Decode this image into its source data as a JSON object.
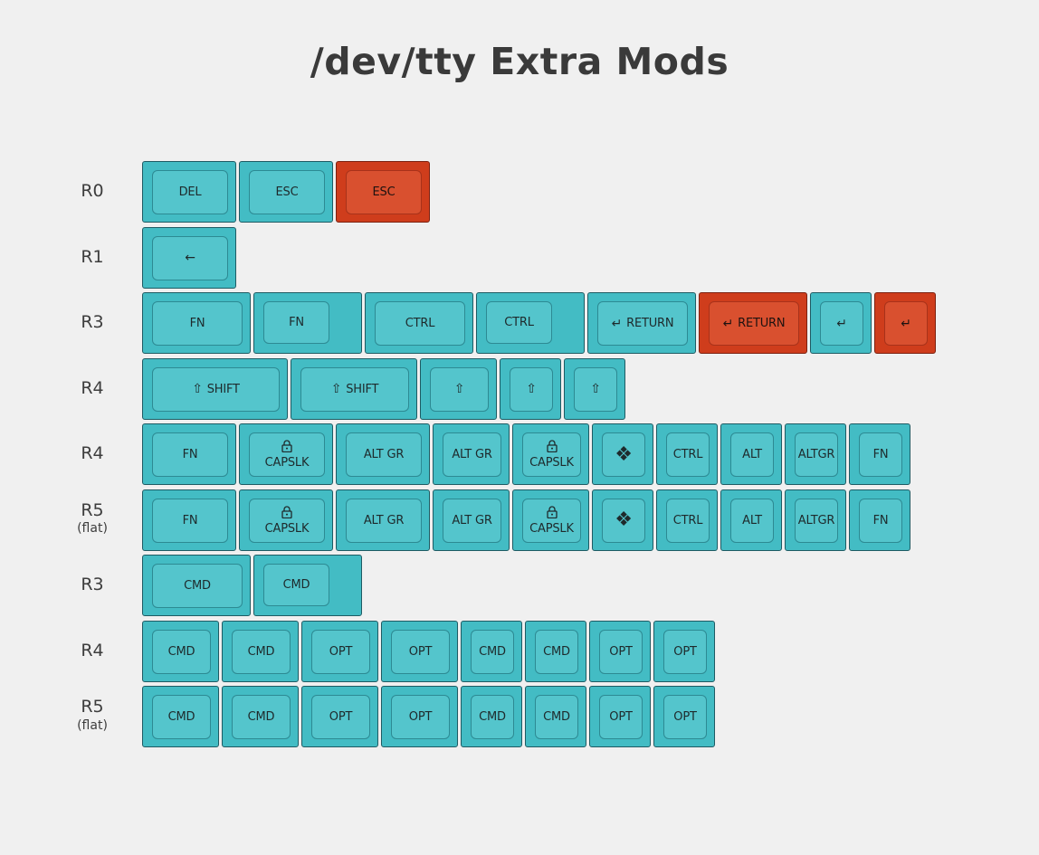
{
  "title": "/dev/tty Extra Mods",
  "colors": {
    "teal": "#43bcc4",
    "teal_top": "#54c5cc",
    "red": "#cf3d1c",
    "red_top": "#d9502f",
    "background": "#f0f0f0"
  },
  "rows": [
    {
      "label": "R0",
      "sublabel": "",
      "keys": [
        {
          "text": "DEL",
          "width": 1,
          "color": "teal"
        },
        {
          "text": "ESC",
          "width": 1,
          "color": "teal"
        },
        {
          "text": "ESC",
          "width": 1,
          "color": "red"
        }
      ]
    },
    {
      "label": "R1",
      "sublabel": "",
      "keys": [
        {
          "text": "",
          "icon": "←",
          "icon_name": "left-arrow-icon",
          "width": 1,
          "color": "teal"
        }
      ]
    },
    {
      "label": "R3",
      "sublabel": "",
      "keys": [
        {
          "text": "FN",
          "width": 1.15,
          "color": "teal"
        },
        {
          "text": "FN",
          "width": 1.15,
          "color": "teal",
          "stepped": true
        },
        {
          "text": "CTRL",
          "width": 1.15,
          "color": "teal"
        },
        {
          "text": "CTRL",
          "width": 1.15,
          "color": "teal",
          "stepped": true
        },
        {
          "text": "RETURN",
          "icon": "↵",
          "icon_name": "return-icon",
          "width": 1.15,
          "color": "teal"
        },
        {
          "text": "RETURN",
          "icon": "↵",
          "icon_name": "return-icon",
          "width": 1.15,
          "color": "red"
        },
        {
          "text": "",
          "icon": "↵",
          "icon_name": "return-icon",
          "width": 0.65,
          "color": "teal"
        },
        {
          "text": "",
          "icon": "↵",
          "icon_name": "return-icon",
          "width": 0.65,
          "color": "red"
        }
      ]
    },
    {
      "label": "R4",
      "sublabel": "",
      "keys": [
        {
          "text": "SHIFT",
          "icon": "⇧",
          "icon_name": "shift-icon",
          "width": 1.55,
          "color": "teal"
        },
        {
          "text": "SHIFT",
          "icon": "⇧",
          "icon_name": "shift-icon",
          "width": 1.35,
          "color": "teal"
        },
        {
          "text": "",
          "icon": "⇧",
          "icon_name": "shift-icon",
          "width": 0.82,
          "color": "teal"
        },
        {
          "text": "",
          "icon": "⇧",
          "icon_name": "shift-icon",
          "width": 0.65,
          "color": "teal"
        },
        {
          "text": "",
          "icon": "⇧",
          "icon_name": "shift-icon",
          "width": 0.65,
          "color": "teal"
        }
      ]
    },
    {
      "label": "R4",
      "sublabel": "",
      "keys": [
        {
          "text": "FN",
          "width": 1,
          "color": "teal"
        },
        {
          "text": "CAPSLK",
          "icon": "🔒",
          "icon_name": "lock-icon",
          "width": 1,
          "color": "teal"
        },
        {
          "text": "ALT GR",
          "width": 1,
          "color": "teal"
        },
        {
          "text": "ALT GR",
          "width": 0.82,
          "color": "teal"
        },
        {
          "text": "CAPSLK",
          "icon": "🔒",
          "icon_name": "lock-icon",
          "width": 0.82,
          "color": "teal"
        },
        {
          "text": "",
          "icon": "❖",
          "icon_name": "super-key-icon",
          "width": 0.65,
          "color": "teal"
        },
        {
          "text": "CTRL",
          "width": 0.65,
          "color": "teal"
        },
        {
          "text": "ALT",
          "width": 0.65,
          "color": "teal"
        },
        {
          "text": "ALTGR",
          "width": 0.65,
          "color": "teal"
        },
        {
          "text": "FN",
          "width": 0.65,
          "color": "teal"
        }
      ]
    },
    {
      "label": "R5",
      "sublabel": "(flat)",
      "keys": [
        {
          "text": "FN",
          "width": 1,
          "color": "teal"
        },
        {
          "text": "CAPSLK",
          "icon": "🔒",
          "icon_name": "lock-icon",
          "width": 1,
          "color": "teal"
        },
        {
          "text": "ALT GR",
          "width": 1,
          "color": "teal"
        },
        {
          "text": "ALT GR",
          "width": 0.82,
          "color": "teal"
        },
        {
          "text": "CAPSLK",
          "icon": "🔒",
          "icon_name": "lock-icon",
          "width": 0.82,
          "color": "teal"
        },
        {
          "text": "",
          "icon": "❖",
          "icon_name": "super-key-icon",
          "width": 0.65,
          "color": "teal"
        },
        {
          "text": "CTRL",
          "width": 0.65,
          "color": "teal"
        },
        {
          "text": "ALT",
          "width": 0.65,
          "color": "teal"
        },
        {
          "text": "ALTGR",
          "width": 0.65,
          "color": "teal"
        },
        {
          "text": "FN",
          "width": 0.65,
          "color": "teal"
        }
      ]
    },
    {
      "label": "R3",
      "sublabel": "",
      "keys": [
        {
          "text": "CMD",
          "width": 1.15,
          "color": "teal"
        },
        {
          "text": "CMD",
          "width": 1.15,
          "color": "teal",
          "stepped": true
        }
      ]
    },
    {
      "label": "R4",
      "sublabel": "",
      "keys": [
        {
          "text": "CMD",
          "width": 0.82,
          "color": "teal"
        },
        {
          "text": "CMD",
          "width": 0.82,
          "color": "teal"
        },
        {
          "text": "OPT",
          "width": 0.82,
          "color": "teal"
        },
        {
          "text": "OPT",
          "width": 0.82,
          "color": "teal"
        },
        {
          "text": "CMD",
          "width": 0.65,
          "color": "teal"
        },
        {
          "text": "CMD",
          "width": 0.65,
          "color": "teal"
        },
        {
          "text": "OPT",
          "width": 0.65,
          "color": "teal"
        },
        {
          "text": "OPT",
          "width": 0.65,
          "color": "teal"
        }
      ]
    },
    {
      "label": "R5",
      "sublabel": "(flat)",
      "keys": [
        {
          "text": "CMD",
          "width": 0.82,
          "color": "teal"
        },
        {
          "text": "CMD",
          "width": 0.82,
          "color": "teal"
        },
        {
          "text": "OPT",
          "width": 0.82,
          "color": "teal"
        },
        {
          "text": "OPT",
          "width": 0.82,
          "color": "teal"
        },
        {
          "text": "CMD",
          "width": 0.65,
          "color": "teal"
        },
        {
          "text": "CMD",
          "width": 0.65,
          "color": "teal"
        },
        {
          "text": "OPT",
          "width": 0.65,
          "color": "teal"
        },
        {
          "text": "OPT",
          "width": 0.65,
          "color": "teal"
        }
      ]
    }
  ]
}
